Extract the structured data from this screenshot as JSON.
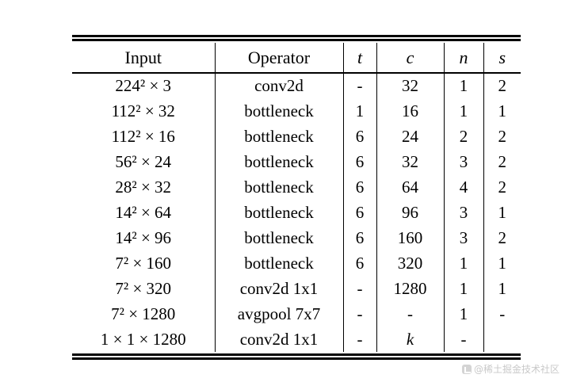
{
  "table": {
    "headers": [
      "Input",
      "Operator",
      "t",
      "c",
      "n",
      "s"
    ],
    "rows": [
      [
        "224² × 3",
        "conv2d",
        "-",
        "32",
        "1",
        "2"
      ],
      [
        "112² × 32",
        "bottleneck",
        "1",
        "16",
        "1",
        "1"
      ],
      [
        "112² × 16",
        "bottleneck",
        "6",
        "24",
        "2",
        "2"
      ],
      [
        "56² × 24",
        "bottleneck",
        "6",
        "32",
        "3",
        "2"
      ],
      [
        "28² × 32",
        "bottleneck",
        "6",
        "64",
        "4",
        "2"
      ],
      [
        "14² × 64",
        "bottleneck",
        "6",
        "96",
        "3",
        "1"
      ],
      [
        "14² × 96",
        "bottleneck",
        "6",
        "160",
        "3",
        "2"
      ],
      [
        "7² × 160",
        "bottleneck",
        "6",
        "320",
        "1",
        "1"
      ],
      [
        "7² × 320",
        "conv2d 1x1",
        "-",
        "1280",
        "1",
        "1"
      ],
      [
        "7² × 1280",
        "avgpool 7x7",
        "-",
        "-",
        "1",
        "-"
      ],
      [
        "1 × 1 × 1280",
        "conv2d 1x1",
        "-",
        "k",
        "-",
        ""
      ]
    ]
  },
  "watermark": {
    "text": "@稀土掘金技术社区"
  }
}
